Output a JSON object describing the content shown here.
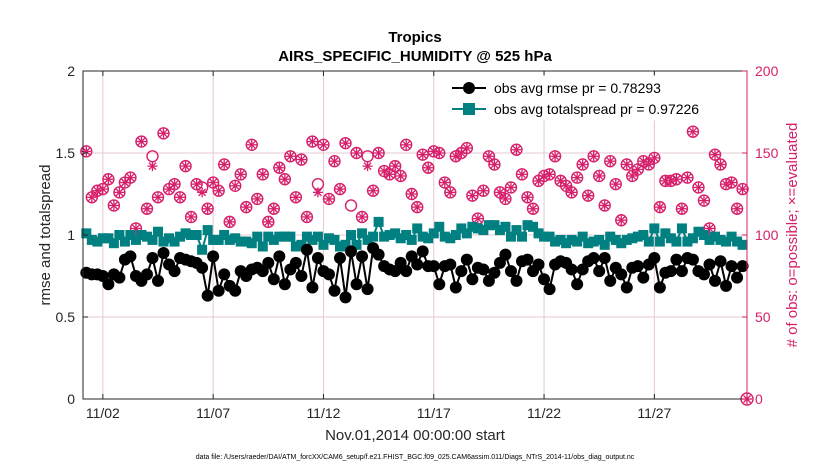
{
  "chart_data": {
    "type": "scatter",
    "title": "Tropics",
    "subtitle": "AIRS_SPECIFIC_HUMIDITY @ 525 hPa",
    "xlabel": "Nov.01,2014 00:00:00 start",
    "ylabel_left": "rmse and totalspread",
    "ylabel_right": "# of obs: o=possible; ×=evaluated",
    "footnote": "data file: /Users/raeder/DAI/ATM_forcXX/CAM6_setup/f.e21.FHIST_BGC.f09_025.CAM6assim.011/Diags_NTrS_2014-11/obs_diag_output.nc",
    "xlim": [
      0.6,
      30.7
    ],
    "ylim_left": [
      0,
      2
    ],
    "ylim_right": [
      0,
      200
    ],
    "xticks": [
      1.5,
      6.5,
      11.5,
      16.5,
      21.5,
      26.5
    ],
    "xtick_labels": [
      "11/02",
      "11/07",
      "11/12",
      "11/17",
      "11/22",
      "11/27"
    ],
    "yticks_left": [
      0,
      0.5,
      1,
      1.5,
      2
    ],
    "ytick_labels_left": [
      "0",
      "0.5",
      "1",
      "1.5",
      "2"
    ],
    "yticks_right": [
      0,
      50,
      100,
      150,
      200
    ],
    "ytick_labels_right": [
      "0",
      "50",
      "100",
      "150",
      "200"
    ],
    "grid": true,
    "legend_position": "top-right",
    "colors": {
      "rmse": "#000000",
      "spread": "#008080",
      "obs": "#d6206b",
      "grid": "#e5c8d2"
    },
    "series": [
      {
        "name": "obs avg rmse pr = 0.78293",
        "axis": "left",
        "marker": "circle",
        "x": [
          0.75,
          1.0,
          1.25,
          1.5,
          1.75,
          2.0,
          2.25,
          2.5,
          2.75,
          3.0,
          3.25,
          3.5,
          3.75,
          4.0,
          4.25,
          4.5,
          4.75,
          5.0,
          5.25,
          5.5,
          5.75,
          6.0,
          6.25,
          6.5,
          6.75,
          7.0,
          7.25,
          7.5,
          7.75,
          8.0,
          8.25,
          8.5,
          8.75,
          9.0,
          9.25,
          9.5,
          9.75,
          10.0,
          10.25,
          10.5,
          10.75,
          11.0,
          11.25,
          11.5,
          11.75,
          12.0,
          12.25,
          12.5,
          12.75,
          13.0,
          13.25,
          13.5,
          13.75,
          14.0,
          14.25,
          14.5,
          14.75,
          15.0,
          15.25,
          15.5,
          15.75,
          16.0,
          16.25,
          16.5,
          16.75,
          17.0,
          17.25,
          17.5,
          17.75,
          18.0,
          18.25,
          18.5,
          18.75,
          19.0,
          19.25,
          19.5,
          19.75,
          20.0,
          20.25,
          20.5,
          20.75,
          21.0,
          21.25,
          21.5,
          21.75,
          22.0,
          22.25,
          22.5,
          22.75,
          23.0,
          23.25,
          23.5,
          23.75,
          24.0,
          24.25,
          24.5,
          24.75,
          25.0,
          25.25,
          25.5,
          25.75,
          26.0,
          26.25,
          26.5,
          26.75,
          27.0,
          27.25,
          27.5,
          27.75,
          28.0,
          28.25,
          28.5,
          28.75,
          29.0,
          29.25,
          29.5,
          29.75,
          30.0,
          30.25,
          30.5
        ],
        "values": [
          0.77,
          0.76,
          0.76,
          0.75,
          0.7,
          0.76,
          0.74,
          0.85,
          0.87,
          0.75,
          0.72,
          0.76,
          0.86,
          0.72,
          0.89,
          0.82,
          0.78,
          0.86,
          0.85,
          0.84,
          0.83,
          0.8,
          0.63,
          0.87,
          0.66,
          0.76,
          0.69,
          0.66,
          0.78,
          0.75,
          0.79,
          0.8,
          0.78,
          0.83,
          0.73,
          0.87,
          0.7,
          0.79,
          0.83,
          0.75,
          0.91,
          0.68,
          0.86,
          0.78,
          0.76,
          0.66,
          0.86,
          0.62,
          0.9,
          0.7,
          0.87,
          0.67,
          0.92,
          0.88,
          0.81,
          0.79,
          0.78,
          0.83,
          0.78,
          0.87,
          0.82,
          0.9,
          0.81,
          0.81,
          0.7,
          0.81,
          0.82,
          0.68,
          0.78,
          0.85,
          0.73,
          0.8,
          0.79,
          0.72,
          0.77,
          0.83,
          0.88,
          0.78,
          0.72,
          0.84,
          0.85,
          0.78,
          0.82,
          0.73,
          0.67,
          0.82,
          0.84,
          0.83,
          0.79,
          0.7,
          0.79,
          0.84,
          0.86,
          0.78,
          0.86,
          0.72,
          0.8,
          0.76,
          0.68,
          0.8,
          0.81,
          0.74,
          0.82,
          0.86,
          0.68,
          0.77,
          0.78,
          0.85,
          0.78,
          0.86,
          0.85,
          0.78,
          0.76,
          0.82,
          0.72,
          0.84,
          0.69,
          0.81,
          0.74,
          0.81
        ]
      },
      {
        "name": "obs avg totalspread pr = 0.97226",
        "axis": "left",
        "marker": "square",
        "x": [
          0.75,
          1.0,
          1.25,
          1.5,
          1.75,
          2.0,
          2.25,
          2.5,
          2.75,
          3.0,
          3.25,
          3.5,
          3.75,
          4.0,
          4.25,
          4.5,
          4.75,
          5.0,
          5.25,
          5.5,
          5.75,
          6.0,
          6.25,
          6.5,
          6.75,
          7.0,
          7.25,
          7.5,
          7.75,
          8.0,
          8.25,
          8.5,
          8.75,
          9.0,
          9.25,
          9.5,
          9.75,
          10.0,
          10.25,
          10.5,
          10.75,
          11.0,
          11.25,
          11.5,
          11.75,
          12.0,
          12.25,
          12.5,
          12.75,
          13.0,
          13.25,
          13.5,
          13.75,
          14.0,
          14.25,
          14.5,
          14.75,
          15.0,
          15.25,
          15.5,
          15.75,
          16.0,
          16.25,
          16.5,
          16.75,
          17.0,
          17.25,
          17.5,
          17.75,
          18.0,
          18.25,
          18.5,
          18.75,
          19.0,
          19.25,
          19.5,
          19.75,
          20.0,
          20.25,
          20.5,
          20.75,
          21.0,
          21.25,
          21.5,
          21.75,
          22.0,
          22.25,
          22.5,
          22.75,
          23.0,
          23.25,
          23.5,
          23.75,
          24.0,
          24.25,
          24.5,
          24.75,
          25.0,
          25.25,
          25.5,
          25.75,
          26.0,
          26.25,
          26.5,
          26.75,
          27.0,
          27.25,
          27.5,
          27.75,
          28.0,
          28.25,
          28.5,
          28.75,
          29.0,
          29.25,
          29.5,
          29.75,
          30.0,
          30.25,
          30.5
        ],
        "values": [
          1.01,
          0.97,
          0.96,
          0.98,
          0.98,
          0.95,
          1.0,
          0.96,
          1.0,
          0.97,
          1.0,
          0.99,
          0.97,
          1.02,
          0.96,
          0.98,
          0.96,
          0.99,
          1.01,
          1.0,
          1.0,
          0.91,
          1.03,
          0.97,
          0.97,
          1.0,
          0.97,
          0.98,
          0.96,
          0.96,
          0.95,
          0.99,
          0.93,
          0.99,
          0.97,
          0.99,
          0.99,
          0.99,
          0.93,
          0.94,
          0.99,
          0.97,
          0.99,
          0.94,
          0.98,
          0.97,
          0.93,
          0.94,
          1.0,
          0.94,
          1.01,
          0.97,
          0.99,
          1.08,
          0.99,
          1.0,
          1.01,
          0.98,
          1.0,
          0.97,
          1.04,
          0.99,
          0.98,
          1.01,
          1.05,
          0.99,
          0.98,
          1.0,
          1.04,
          1.01,
          1.05,
          1.04,
          1.03,
          1.06,
          1.06,
          1.03,
          1.05,
          0.99,
          1.03,
          0.99,
          1.06,
          1.05,
          1.01,
          0.99,
          0.99,
          0.96,
          0.97,
          0.95,
          0.97,
          0.96,
          0.99,
          0.95,
          0.96,
          0.97,
          0.94,
          0.99,
          0.97,
          0.95,
          0.97,
          0.98,
          0.99,
          1.0,
          0.96,
          1.04,
          0.96,
          1.01,
          0.98,
          0.96,
          1.04,
          0.96,
          0.98,
          1.02,
          1.0,
          0.97,
          0.99,
          0.97,
          0.96,
          0.99,
          0.96,
          0.94
        ]
      },
      {
        "name": "# obs possible",
        "axis": "right",
        "marker": "open-circle",
        "x": [
          0.75,
          1.0,
          1.25,
          1.5,
          1.75,
          2.0,
          2.25,
          2.5,
          2.75,
          3.0,
          3.25,
          3.5,
          3.75,
          4.0,
          4.25,
          4.5,
          4.75,
          5.0,
          5.25,
          5.5,
          5.75,
          6.0,
          6.25,
          6.5,
          6.75,
          7.0,
          7.25,
          7.5,
          7.75,
          8.0,
          8.25,
          8.5,
          8.75,
          9.0,
          9.25,
          9.5,
          9.75,
          10.0,
          10.25,
          10.5,
          10.75,
          11.0,
          11.25,
          11.5,
          11.75,
          12.0,
          12.25,
          12.5,
          12.75,
          13.0,
          13.25,
          13.5,
          13.75,
          14.0,
          14.25,
          14.5,
          14.75,
          15.0,
          15.25,
          15.5,
          15.75,
          16.0,
          16.25,
          16.5,
          16.75,
          17.0,
          17.25,
          17.5,
          17.75,
          18.0,
          18.25,
          18.5,
          18.75,
          19.0,
          19.25,
          19.5,
          19.75,
          20.0,
          20.25,
          20.5,
          20.75,
          21.0,
          21.25,
          21.5,
          21.75,
          22.0,
          22.25,
          22.5,
          22.75,
          23.0,
          23.25,
          23.5,
          23.75,
          24.0,
          24.25,
          24.5,
          24.75,
          25.0,
          25.25,
          25.5,
          25.75,
          26.0,
          26.25,
          26.5,
          26.75,
          27.0,
          27.25,
          27.5,
          27.75,
          28.0,
          28.25,
          28.5,
          28.75,
          29.0,
          29.25,
          29.5,
          29.75,
          30.0,
          30.25,
          30.5
        ],
        "values": [
          151,
          123,
          127,
          128,
          134,
          118,
          126,
          132,
          135,
          104,
          157,
          116,
          148,
          123,
          162,
          128,
          131,
          123,
          142,
          111,
          131,
          129,
          116,
          132,
          127,
          143,
          108,
          130,
          137,
          117,
          155,
          122,
          137,
          108,
          116,
          141,
          134,
          148,
          123,
          146,
          111,
          157,
          131,
          155,
          122,
          145,
          128,
          156,
          118,
          150,
          111,
          148,
          127,
          150,
          139,
          137,
          142,
          136,
          155,
          125,
          117,
          149,
          141,
          151,
          150,
          132,
          126,
          148,
          150,
          153,
          124,
          110,
          127,
          148,
          143,
          126,
          122,
          129,
          152,
          137,
          123,
          116,
          133,
          136,
          137,
          148,
          133,
          130,
          126,
          135,
          143,
          124,
          148,
          136,
          118,
          145,
          131,
          109,
          143,
          136,
          140,
          145,
          143,
          147,
          117,
          133,
          133,
          134,
          116,
          135,
          163,
          129,
          121,
          104,
          149,
          143,
          131,
          132,
          116,
          128
        ]
      },
      {
        "name": "# obs evaluated",
        "axis": "right",
        "marker": "asterisk",
        "x": [
          0.75,
          1.0,
          1.25,
          1.5,
          1.75,
          2.0,
          2.25,
          2.5,
          2.75,
          3.0,
          3.25,
          3.5,
          3.75,
          4.0,
          4.25,
          4.5,
          4.75,
          5.0,
          5.25,
          5.5,
          5.75,
          6.0,
          6.25,
          6.5,
          6.75,
          7.0,
          7.25,
          7.5,
          7.75,
          8.0,
          8.25,
          8.5,
          8.75,
          9.0,
          9.25,
          9.5,
          9.75,
          10.0,
          10.25,
          10.5,
          10.75,
          11.0,
          11.25,
          11.5,
          11.75,
          12.0,
          12.25,
          12.5,
          12.75,
          13.0,
          13.25,
          13.5,
          13.75,
          14.0,
          14.25,
          14.5,
          14.75,
          15.0,
          15.25,
          15.5,
          15.75,
          16.0,
          16.25,
          16.5,
          16.75,
          17.0,
          17.25,
          17.5,
          17.75,
          18.0,
          18.25,
          18.5,
          18.75,
          19.0,
          19.25,
          19.5,
          19.75,
          20.0,
          20.25,
          20.5,
          20.75,
          21.0,
          21.25,
          21.5,
          21.75,
          22.0,
          22.25,
          22.5,
          22.75,
          23.0,
          23.25,
          23.5,
          23.75,
          24.0,
          24.25,
          24.5,
          24.75,
          25.0,
          25.25,
          25.5,
          25.75,
          26.0,
          26.25,
          26.5,
          26.75,
          27.0,
          27.25,
          27.5,
          27.75,
          28.0,
          28.25,
          28.5,
          28.75,
          29.0,
          29.25,
          29.5,
          29.75,
          30.0,
          30.25,
          30.5
        ],
        "values": [
          151,
          123,
          127,
          128,
          134,
          118,
          126,
          132,
          135,
          104,
          157,
          116,
          142,
          123,
          162,
          128,
          131,
          123,
          142,
          111,
          131,
          126,
          116,
          132,
          127,
          143,
          108,
          130,
          137,
          117,
          155,
          122,
          137,
          108,
          116,
          141,
          134,
          148,
          123,
          146,
          111,
          157,
          126,
          155,
          122,
          145,
          128,
          156,
          90,
          150,
          111,
          142,
          127,
          150,
          139,
          137,
          142,
          136,
          155,
          125,
          117,
          149,
          141,
          151,
          150,
          132,
          126,
          148,
          150,
          153,
          124,
          110,
          127,
          148,
          143,
          126,
          122,
          129,
          152,
          137,
          123,
          116,
          133,
          136,
          137,
          148,
          133,
          130,
          126,
          135,
          143,
          124,
          148,
          136,
          118,
          145,
          131,
          109,
          143,
          136,
          140,
          145,
          143,
          147,
          117,
          133,
          133,
          134,
          116,
          135,
          163,
          129,
          121,
          104,
          149,
          143,
          131,
          132,
          116,
          128
        ]
      },
      {
        "name": "last-bin obs",
        "axis": "right",
        "marker": "circle-asterisk",
        "x": [
          30.7
        ],
        "values": [
          0
        ]
      }
    ]
  }
}
